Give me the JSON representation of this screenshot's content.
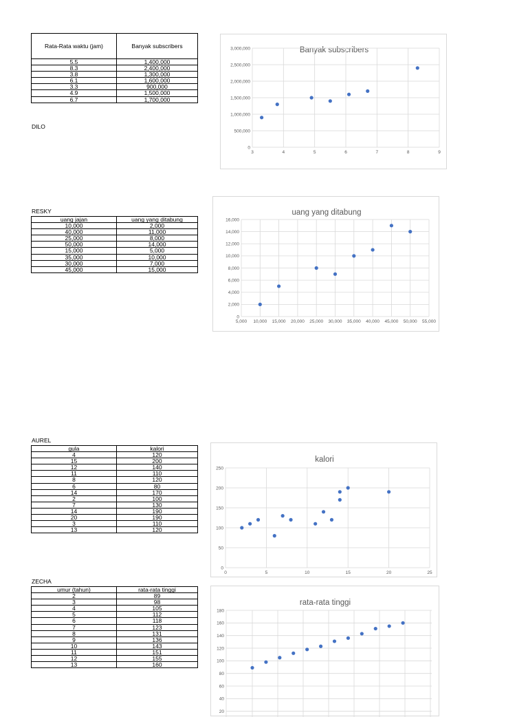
{
  "section1": {
    "header": [
      "Rata-Rata waktu (jam)",
      "Banyak subscribers"
    ],
    "rows": [
      [
        "5.5",
        "1,400,000"
      ],
      [
        "8.3",
        "2,400,000"
      ],
      [
        "3.8",
        "1,300,000"
      ],
      [
        "6.1",
        "1,600,000"
      ],
      [
        "3.3",
        "900,000"
      ],
      [
        "4.9",
        "1,500,000"
      ],
      [
        "6.7",
        "1,700,000"
      ]
    ],
    "author": "DILO"
  },
  "section2": {
    "author": "RESKY",
    "header": [
      "uang jajan",
      "uang yang ditabung"
    ],
    "rows": [
      [
        "10,000",
        "2,000"
      ],
      [
        "40,000",
        "11,000"
      ],
      [
        "25,000",
        "8,000"
      ],
      [
        "50,000",
        "14,000"
      ],
      [
        "15,000",
        "5,000"
      ],
      [
        "35,000",
        "10,000"
      ],
      [
        "30,000",
        "7,000"
      ],
      [
        "45,000",
        "15,000"
      ]
    ]
  },
  "section3": {
    "author": "AUREL",
    "header": [
      "gula",
      "kalori"
    ],
    "rows": [
      [
        "4",
        "120"
      ],
      [
        "15",
        "200"
      ],
      [
        "12",
        "140"
      ],
      [
        "11",
        "110"
      ],
      [
        "8",
        "120"
      ],
      [
        "6",
        "80"
      ],
      [
        "14",
        "170"
      ],
      [
        "2",
        "100"
      ],
      [
        "7",
        "130"
      ],
      [
        "14",
        "190"
      ],
      [
        "20",
        "190"
      ],
      [
        "3",
        "110"
      ],
      [
        "13",
        "120"
      ]
    ]
  },
  "section4": {
    "author": "ZECHA",
    "header": [
      "umur (tahun)",
      "rata-rata tinggi"
    ],
    "rows": [
      [
        "2",
        "89"
      ],
      [
        "3",
        "98"
      ],
      [
        "4",
        "105"
      ],
      [
        "5",
        "112"
      ],
      [
        "6",
        "118"
      ],
      [
        "7",
        "123"
      ],
      [
        "8",
        "131"
      ],
      [
        "9",
        "136"
      ],
      [
        "10",
        "143"
      ],
      [
        "11",
        "151"
      ],
      [
        "12",
        "155"
      ],
      [
        "13",
        "160"
      ]
    ]
  },
  "colors": {
    "marker": "#4472c4",
    "grid": "#d9d9d9",
    "text": "#595959"
  },
  "chart_data": [
    {
      "type": "scatter",
      "title": "Banyak subscribers",
      "x": [
        5.5,
        8.3,
        3.8,
        6.1,
        3.3,
        4.9,
        6.7
      ],
      "y": [
        1400000,
        2400000,
        1300000,
        1600000,
        900000,
        1500000,
        1700000
      ],
      "xlim": [
        3,
        9
      ],
      "ylim": [
        0,
        3000000
      ],
      "xticks": [
        "3",
        "4",
        "5",
        "6",
        "7",
        "8",
        "9"
      ],
      "yticks": [
        "0",
        "500,000",
        "1,000,000",
        "1,500,000",
        "2,000,000",
        "2,500,000",
        "3,000,000"
      ],
      "grid": true
    },
    {
      "type": "scatter",
      "title": "uang yang ditabung",
      "x": [
        10000,
        40000,
        25000,
        50000,
        15000,
        35000,
        30000,
        45000
      ],
      "y": [
        2000,
        11000,
        8000,
        14000,
        5000,
        10000,
        7000,
        15000
      ],
      "xlim": [
        5000,
        55000
      ],
      "ylim": [
        0,
        16000
      ],
      "xticks": [
        "5,000",
        "10,000",
        "15,000",
        "20,000",
        "25,000",
        "30,000",
        "35,000",
        "40,000",
        "45,000",
        "50,000",
        "55,000"
      ],
      "yticks": [
        "0",
        "2,000",
        "4,000",
        "6,000",
        "8,000",
        "10,000",
        "12,000",
        "14,000",
        "16,000"
      ],
      "grid": true
    },
    {
      "type": "scatter",
      "title": "kalori",
      "x": [
        4,
        15,
        12,
        11,
        8,
        6,
        14,
        2,
        7,
        14,
        20,
        3,
        13
      ],
      "y": [
        120,
        200,
        140,
        110,
        120,
        80,
        170,
        100,
        130,
        190,
        190,
        110,
        120
      ],
      "xlim": [
        0,
        25
      ],
      "ylim": [
        0,
        250
      ],
      "xticks": [
        "0",
        "5",
        "10",
        "15",
        "20",
        "25"
      ],
      "yticks": [
        "0",
        "50",
        "100",
        "150",
        "200",
        "250"
      ],
      "grid": true
    },
    {
      "type": "scatter",
      "title": "rata-rata tinggi",
      "x": [
        2,
        3,
        4,
        5,
        6,
        7,
        8,
        9,
        10,
        11,
        12,
        13
      ],
      "y": [
        89,
        98,
        105,
        112,
        118,
        123,
        131,
        136,
        143,
        151,
        155,
        160
      ],
      "ylim": [
        0,
        180
      ],
      "yticks": [
        "20",
        "40",
        "60",
        "80",
        "100",
        "120",
        "140",
        "160",
        "180"
      ],
      "grid": true
    }
  ]
}
